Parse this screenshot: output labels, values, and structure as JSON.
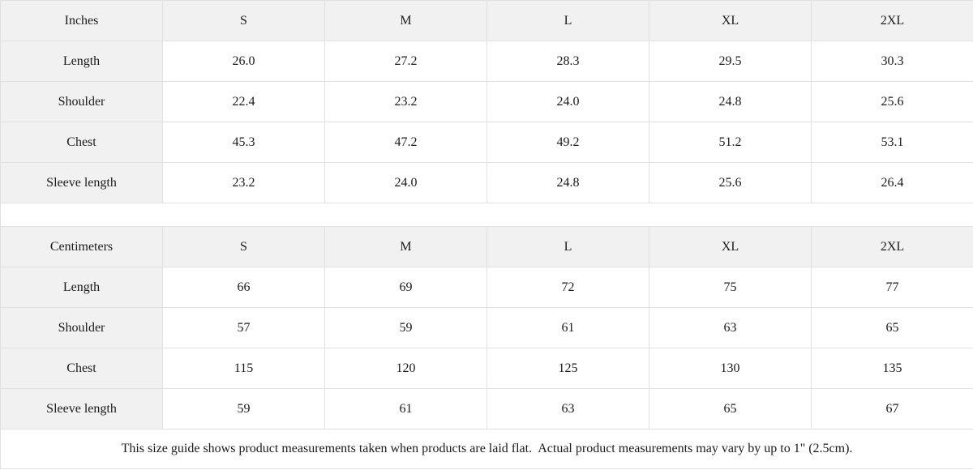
{
  "colors": {
    "header_bg": "#f1f1f1",
    "cell_bg": "#ffffff",
    "border": "#e0e0e0",
    "text": "#1b1b1b"
  },
  "tables": [
    {
      "unit_label": "Inches",
      "columns": [
        "S",
        "M",
        "L",
        "XL",
        "2XL"
      ],
      "rows": [
        {
          "label": "Length",
          "values": [
            "26.0",
            "27.2",
            "28.3",
            "29.5",
            "30.3"
          ]
        },
        {
          "label": "Shoulder",
          "values": [
            "22.4",
            "23.2",
            "24.0",
            "24.8",
            "25.6"
          ]
        },
        {
          "label": "Chest",
          "values": [
            "45.3",
            "47.2",
            "49.2",
            "51.2",
            "53.1"
          ]
        },
        {
          "label": "Sleeve length",
          "values": [
            "23.2",
            "24.0",
            "24.8",
            "25.6",
            "26.4"
          ]
        }
      ]
    },
    {
      "unit_label": "Centimeters",
      "columns": [
        "S",
        "M",
        "L",
        "XL",
        "2XL"
      ],
      "rows": [
        {
          "label": "Length",
          "values": [
            "66",
            "69",
            "72",
            "75",
            "77"
          ]
        },
        {
          "label": "Shoulder",
          "values": [
            "57",
            "59",
            "61",
            "63",
            "65"
          ]
        },
        {
          "label": "Chest",
          "values": [
            "115",
            "120",
            "125",
            "130",
            "135"
          ]
        },
        {
          "label": "Sleeve length",
          "values": [
            "59",
            "61",
            "63",
            "65",
            "67"
          ]
        }
      ]
    }
  ],
  "footer_note": "This size guide shows product measurements taken when products are laid flat.  Actual product measurements may vary by up to 1\" (2.5cm)."
}
